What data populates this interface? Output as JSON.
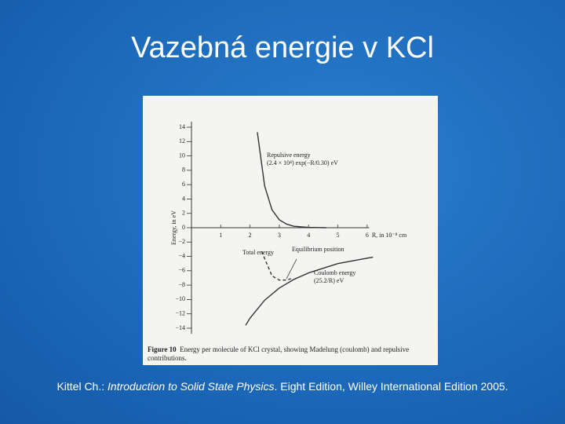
{
  "slide_title": "Vazebná energie v KCl",
  "citation": {
    "parts": [
      "Kittel Ch.: ",
      "Introduction to Solid State Physics",
      ". Eight Edition, Willey International Edition 2005."
    ]
  },
  "chart_data": {
    "type": "line",
    "y_label": "Energy, in eV",
    "x_label": "R, in 10⁻⁸ cm",
    "figure_label": "Figure 10",
    "figure_caption": "Energy per molecule of KCl crystal, showing Madelung (coulomb) and repulsive contributions.",
    "xlim": [
      0,
      6.5
    ],
    "xticks": [
      1,
      2,
      3,
      4,
      5,
      6
    ],
    "ylim": [
      -15,
      15
    ],
    "yticks": [
      {
        "value": -14,
        "label": "−14"
      },
      {
        "value": -12,
        "label": "−12"
      },
      {
        "value": -10,
        "label": "−10"
      },
      {
        "value": -8,
        "label": "−8"
      },
      {
        "value": -6,
        "label": "−6"
      },
      {
        "value": -4,
        "label": "−4"
      },
      {
        "value": -2,
        "label": "−2"
      },
      0,
      2,
      4,
      6,
      8,
      10,
      12,
      14
    ],
    "series": [
      {
        "name": "Repulsive energy",
        "color": "#333333",
        "dashed": false,
        "x": [
          2.25,
          2.5,
          2.75,
          3,
          3.25,
          3.5,
          4,
          4.6
        ],
        "values": [
          13.3,
          5.8,
          2.5,
          1.1,
          0.5,
          0.2,
          0.05,
          0
        ]
      },
      {
        "name": "Total energy",
        "color": "#333333",
        "dashed": true,
        "x": [
          2.4,
          2.5,
          2.75,
          3,
          3.25,
          3.4
        ],
        "values": [
          -3.3,
          -4.3,
          -6.7,
          -7.3,
          -7.3,
          -7.1
        ]
      },
      {
        "name": "Coulomb energy",
        "color": "#333333",
        "dashed": false,
        "x": [
          1.85,
          2,
          2.5,
          3,
          3.5,
          4,
          5,
          6.2
        ],
        "values": [
          -13.6,
          -12.6,
          -10.1,
          -8.4,
          -7.2,
          -6.3,
          -5.0,
          -4.1
        ]
      }
    ],
    "annotations": [
      "Repulsive energy",
      "(2.4 × 10⁴) exp(−R/0.30) eV",
      "Total energy",
      "Equilibrium position",
      "Coulomb energy",
      "(25.2/R) eV"
    ]
  }
}
